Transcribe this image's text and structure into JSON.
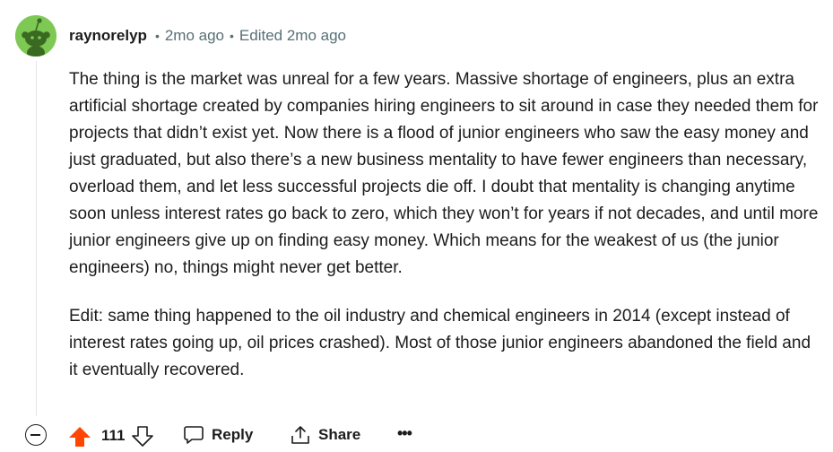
{
  "comment": {
    "author": "raynorelyp",
    "posted": "2mo ago",
    "edited": "Edited 2mo ago",
    "separator": "•",
    "paragraphs": [
      "The thing is the market was unreal for a few years. Massive shortage of engineers, plus an extra artificial shortage created by companies hiring engineers to sit around in case they needed them for projects that didn’t exist yet. Now there is a flood of junior engineers who saw the easy money and just graduated, but also there’s a new business mentality to have fewer engineers than necessary, overload them, and let less successful projects die off. I doubt that mentality is changing anytime soon unless interest rates go back to zero, which they won’t for years if not decades, and until more junior engineers give up on finding easy money. Which means for the weakest of us (the junior engineers) no, things might never get better.",
      "Edit: same thing happened to the oil industry and chemical engineers in 2014 (except instead of interest rates going up, oil prices crashed). Most of those junior engineers abandoned the field and it eventually recovered."
    ]
  },
  "actions": {
    "score": "111",
    "reply_label": "Reply",
    "share_label": "Share",
    "more_label": "•••"
  },
  "icons": {
    "avatar": "snoo-avatar-icon",
    "collapse": "collapse-minus-icon",
    "upvote": "upvote-arrow-icon",
    "downvote": "downvote-arrow-icon",
    "reply": "speech-bubble-icon",
    "share": "share-upload-icon",
    "more": "ellipsis-icon"
  },
  "colors": {
    "avatar_bg": "#7ec854",
    "upvote_active": "#ff4500",
    "meta_text": "#576f76",
    "text": "#1c1c1c"
  }
}
